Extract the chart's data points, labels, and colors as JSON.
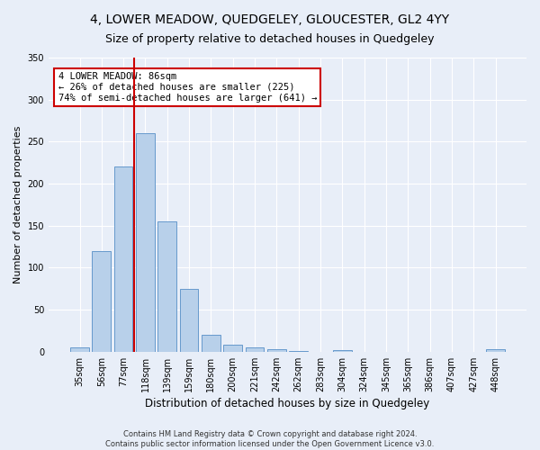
{
  "title": "4, LOWER MEADOW, QUEDGELEY, GLOUCESTER, GL2 4YY",
  "subtitle": "Size of property relative to detached houses in Quedgeley",
  "xlabel": "Distribution of detached houses by size in Quedgeley",
  "ylabel": "Number of detached properties",
  "bar_color": "#b8d0ea",
  "bar_edge_color": "#6699cc",
  "background_color": "#e8eef8",
  "fig_background_color": "#e8eef8",
  "grid_color": "#ffffff",
  "categories": [
    "35sqm",
    "56sqm",
    "77sqm",
    "118sqm",
    "139sqm",
    "159sqm",
    "180sqm",
    "200sqm",
    "221sqm",
    "242sqm",
    "262sqm",
    "283sqm",
    "304sqm",
    "324sqm",
    "345sqm",
    "365sqm",
    "386sqm",
    "407sqm",
    "427sqm",
    "448sqm"
  ],
  "values": [
    5,
    120,
    220,
    260,
    155,
    75,
    20,
    8,
    5,
    3,
    1,
    0,
    2,
    0,
    0,
    0,
    0,
    0,
    0,
    3
  ],
  "ylim": [
    0,
    350
  ],
  "yticks": [
    0,
    50,
    100,
    150,
    200,
    250,
    300,
    350
  ],
  "red_line_x": 2.5,
  "annotation_text": "4 LOWER MEADOW: 86sqm\n← 26% of detached houses are smaller (225)\n74% of semi-detached houses are larger (641) →",
  "annotation_box_color": "#ffffff",
  "annotation_border_color": "#cc0000",
  "footer_line1": "Contains HM Land Registry data © Crown copyright and database right 2024.",
  "footer_line2": "Contains public sector information licensed under the Open Government Licence v3.0.",
  "title_fontsize": 10,
  "subtitle_fontsize": 9,
  "xlabel_fontsize": 8.5,
  "ylabel_fontsize": 8,
  "tick_fontsize": 7,
  "annotation_fontsize": 7.5,
  "footer_fontsize": 6
}
